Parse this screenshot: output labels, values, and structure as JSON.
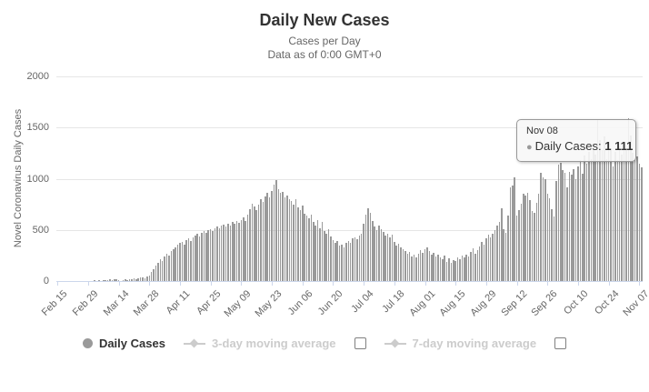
{
  "header": {
    "title": "Daily New Cases",
    "subtitle1": "Cases per Day",
    "subtitle2": "Data as of 0:00 GMT+0"
  },
  "tooltip": {
    "date": "Nov 08",
    "bullet": "●",
    "label": "Daily Cases:",
    "value": "1 111"
  },
  "legend": {
    "items": [
      {
        "label": "Daily Cases",
        "marker": "circle",
        "active": true,
        "checkbox": false
      },
      {
        "label": "3-day moving average",
        "marker": "line-diamond",
        "active": false,
        "checkbox": true
      },
      {
        "label": "7-day moving average",
        "marker": "line-diamond",
        "active": false,
        "checkbox": true
      }
    ]
  },
  "colors": {
    "bar": "#9a9a9a",
    "grid": "#e6e6e6",
    "axis_line": "#ccd6eb",
    "text_dark": "#333333",
    "text_muted": "#666666",
    "legend_disabled": "#cccccc",
    "tooltip_bg": "rgba(247,247,247,0.90)",
    "tooltip_border": "#999999"
  },
  "chart_data": {
    "type": "bar",
    "title": "Daily New Cases",
    "subtitle": [
      "Cases per Day",
      "Data as of 0:00 GMT+0"
    ],
    "xlabel": "",
    "ylabel": "Novel Coronavirus Daily Cases",
    "ylim": [
      0,
      2000
    ],
    "yticks": [
      0,
      500,
      1000,
      1500,
      2000
    ],
    "grid": true,
    "legend_position": "bottom",
    "x_frequency": "daily",
    "x_start": "Feb 15",
    "x_end": "Nov 08",
    "x_tick_every": 14,
    "x_tick_labels": [
      "Feb 15",
      "Feb 29",
      "Mar 14",
      "Mar 28",
      "Apr 11",
      "Apr 25",
      "May 09",
      "May 23",
      "Jun 06",
      "Jun 20",
      "Jul 04",
      "Jul 18",
      "Aug 01",
      "Aug 15",
      "Aug 29",
      "Sep 12",
      "Sep 26",
      "Oct 10",
      "Oct 24",
      "Nov 07"
    ],
    "hidden_series": [
      "3-day moving average",
      "7-day moving average"
    ],
    "highlighted_point": {
      "date": "Nov 08",
      "value": 1111
    },
    "series": [
      {
        "name": "Daily Cases",
        "color": "#9a9a9a",
        "values": [
          0,
          0,
          0,
          0,
          0,
          0,
          0,
          0,
          0,
          0,
          0,
          0,
          0,
          0,
          0,
          0,
          0,
          5,
          0,
          7,
          0,
          6,
          8,
          12,
          18,
          9,
          14,
          16,
          10,
          0,
          12,
          15,
          9,
          18,
          22,
          28,
          18,
          25,
          32,
          36,
          30,
          42,
          55,
          90,
          120,
          150,
          180,
          210,
          195,
          240,
          265,
          250,
          290,
          310,
          330,
          355,
          370,
          385,
          360,
          400,
          415,
          395,
          430,
          445,
          460,
          440,
          475,
          490,
          470,
          500,
          510,
          490,
          520,
          535,
          515,
          540,
          550,
          530,
          560,
          545,
          575,
          560,
          590,
          570,
          600,
          620,
          590,
          650,
          700,
          760,
          730,
          690,
          750,
          800,
          770,
          830,
          860,
          820,
          880,
          940,
          985,
          900,
          860,
          870,
          820,
          840,
          800,
          780,
          750,
          800,
          720,
          690,
          740,
          660,
          640,
          610,
          650,
          580,
          545,
          600,
          520,
          575,
          490,
          460,
          505,
          440,
          400,
          370,
          390,
          345,
          360,
          330,
          375,
          395,
          370,
          415,
          430,
          410,
          445,
          460,
          560,
          650,
          710,
          670,
          590,
          530,
          495,
          540,
          510,
          480,
          445,
          465,
          430,
          450,
          380,
          350,
          365,
          330,
          310,
          290,
          265,
          285,
          240,
          260,
          230,
          270,
          300,
          280,
          310,
          330,
          290,
          260,
          280,
          240,
          255,
          230,
          210,
          245,
          190,
          220,
          180,
          205,
          195,
          230,
          215,
          250,
          235,
          260,
          240,
          285,
          320,
          270,
          300,
          340,
          380,
          360,
          420,
          450,
          430,
          460,
          500,
          540,
          580,
          710,
          510,
          470,
          640,
          920,
          930,
          1010,
          640,
          690,
          760,
          850,
          835,
          865,
          790,
          685,
          670,
          765,
          850,
          1055,
          1010,
          1000,
          850,
          805,
          700,
          630,
          980,
          1135,
          1160,
          1085,
          1055,
          915,
          1070,
          1040,
          1090,
          1000,
          1120,
          1180,
          1050,
          1230,
          1150,
          1260,
          1190,
          1300,
          1240,
          1570,
          1380,
          1280,
          1410,
          1190,
          1350,
          1300,
          1120,
          1260,
          1180,
          1320,
          1240,
          1360,
          1300,
          1590,
          1420,
          1250,
          1180,
          1220,
          1150,
          1111
        ]
      }
    ]
  }
}
